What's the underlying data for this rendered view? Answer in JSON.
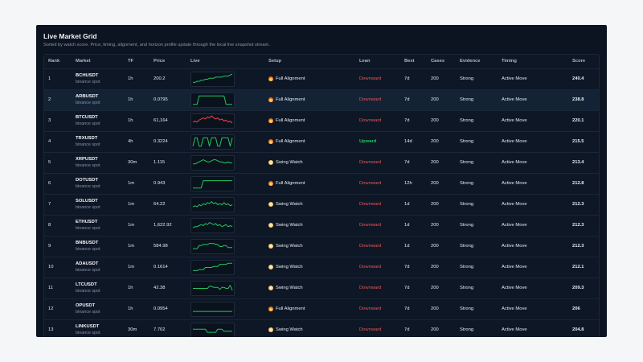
{
  "title": "Live Market Grid",
  "subtitle": "Sorted by watch score. Price, timing, alignment, and horizon profile update through the local live snapshot stream.",
  "columns": {
    "rank": "Rank",
    "market": "Market",
    "tf": "TF",
    "price": "Price",
    "live": "Live",
    "setup": "Setup",
    "lean": "Lean",
    "best": "Best",
    "cases": "Cases",
    "evidence": "Evidence",
    "timing": "Timing",
    "score": "Score"
  },
  "colors": {
    "up": "#22c55e",
    "down": "#ef5350",
    "spark_green": "#22c55e",
    "spark_red": "#ef4444"
  },
  "rows": [
    {
      "rank": "1",
      "market": "BCHUSDT",
      "exchange": "binance spot",
      "tf": "1h",
      "price": "200.2",
      "setup": "Full Alignment",
      "setup_icon": "fire-icon",
      "lean": "Downward",
      "best": "7d",
      "cases": "200",
      "evidence": "Strong",
      "timing": "Active Move",
      "score": "240.4",
      "spark_color": "green",
      "spark": [
        2,
        2,
        3,
        3,
        4,
        4,
        5,
        5,
        6,
        6,
        6,
        7,
        7,
        7,
        7,
        8,
        8,
        8,
        9,
        10
      ]
    },
    {
      "rank": "2",
      "market": "ARBUSDT",
      "exchange": "binance spot",
      "tf": "1h",
      "price": "0.0795",
      "setup": "Full Alignment",
      "setup_icon": "fire-icon",
      "lean": "Downward",
      "best": "7d",
      "cases": "200",
      "evidence": "Strong",
      "timing": "Active Move",
      "score": "238.8",
      "spark_color": "green",
      "spark": [
        1,
        1,
        1,
        9,
        9,
        9,
        9,
        9,
        9,
        9,
        9,
        9,
        9,
        9,
        9,
        9,
        1,
        1,
        1,
        1
      ]
    },
    {
      "rank": "3",
      "market": "BTCUSDT",
      "exchange": "binance spot",
      "tf": "1h",
      "price": "61,164",
      "setup": "Full Alignment",
      "setup_icon": "fire-icon",
      "lean": "Downward",
      "best": "7d",
      "cases": "200",
      "evidence": "Strong",
      "timing": "Active Move",
      "score": "220.1",
      "spark_color": "red",
      "spark": [
        4,
        5,
        4,
        6,
        7,
        8,
        7,
        9,
        8,
        10,
        8,
        7,
        8,
        6,
        7,
        5,
        6,
        4,
        5,
        3
      ]
    },
    {
      "rank": "4",
      "market": "TRXUSDT",
      "exchange": "binance spot",
      "tf": "4h",
      "price": "0.3224",
      "setup": "Full Alignment",
      "setup_icon": "fire-icon",
      "lean": "Upward",
      "best": "14d",
      "cases": "200",
      "evidence": "Strong",
      "timing": "Active Move",
      "score": "215.5",
      "spark_color": "green",
      "spark": [
        1,
        9,
        9,
        1,
        1,
        9,
        9,
        9,
        1,
        9,
        9,
        9,
        1,
        1,
        9,
        9,
        9,
        9,
        1,
        9
      ]
    },
    {
      "rank": "5",
      "market": "XRPUSDT",
      "exchange": "binance spot",
      "tf": "30m",
      "price": "1.115",
      "setup": "Swing Watch",
      "setup_icon": "swing-icon",
      "lean": "Downward",
      "best": "7d",
      "cases": "200",
      "evidence": "Strong",
      "timing": "Active Move",
      "score": "213.4",
      "spark_color": "green",
      "spark": [
        4,
        4,
        5,
        6,
        7,
        8,
        7,
        6,
        6,
        7,
        8,
        8,
        7,
        6,
        6,
        5,
        5,
        6,
        5,
        5
      ]
    },
    {
      "rank": "6",
      "market": "DOTUSDT",
      "exchange": "binance spot",
      "tf": "1m",
      "price": "0.943",
      "setup": "Full Alignment",
      "setup_icon": "fire-icon",
      "lean": "Downward",
      "best": "12h",
      "cases": "200",
      "evidence": "Strong",
      "timing": "Active Move",
      "score": "212.8",
      "spark_color": "green",
      "spark": [
        1,
        1,
        1,
        1,
        1,
        8,
        8,
        8,
        8,
        8,
        8,
        8,
        8,
        8,
        8,
        8,
        8,
        8,
        8,
        8
      ]
    },
    {
      "rank": "7",
      "market": "SOLUSDT",
      "exchange": "binance spot",
      "tf": "1m",
      "price": "64.22",
      "setup": "Swing Watch",
      "setup_icon": "swing-icon",
      "lean": "Downward",
      "best": "1d",
      "cases": "200",
      "evidence": "Strong",
      "timing": "Active Move",
      "score": "212.3",
      "spark_color": "green",
      "spark": [
        3,
        4,
        3,
        5,
        4,
        6,
        5,
        7,
        6,
        8,
        6,
        7,
        5,
        6,
        5,
        7,
        5,
        6,
        4,
        5
      ]
    },
    {
      "rank": "8",
      "market": "ETHUSDT",
      "exchange": "binance spot",
      "tf": "1m",
      "price": "1,622.92",
      "setup": "Swing Watch",
      "setup_icon": "swing-icon",
      "lean": "Downward",
      "best": "1d",
      "cases": "200",
      "evidence": "Strong",
      "timing": "Active Move",
      "score": "212.3",
      "spark_color": "green",
      "spark": [
        3,
        4,
        4,
        5,
        6,
        5,
        7,
        6,
        8,
        7,
        6,
        7,
        5,
        6,
        4,
        5,
        6,
        4,
        5,
        4
      ]
    },
    {
      "rank": "9",
      "market": "BNBUSDT",
      "exchange": "binance spot",
      "tf": "1m",
      "price": "584.98",
      "setup": "Swing Watch",
      "setup_icon": "swing-icon",
      "lean": "Downward",
      "best": "1d",
      "cases": "200",
      "evidence": "Strong",
      "timing": "Active Move",
      "score": "212.3",
      "spark_color": "green",
      "spark": [
        3,
        3,
        3,
        6,
        6,
        7,
        7,
        7,
        8,
        8,
        8,
        7,
        7,
        5,
        5,
        6,
        6,
        4,
        4,
        4
      ]
    },
    {
      "rank": "10",
      "market": "ADAUSDT",
      "exchange": "binance spot",
      "tf": "1m",
      "price": "0.1614",
      "setup": "Swing Watch",
      "setup_icon": "swing-icon",
      "lean": "Downward",
      "best": "7d",
      "cases": "200",
      "evidence": "Strong",
      "timing": "Active Move",
      "score": "212.1",
      "spark_color": "green",
      "spark": [
        2,
        2,
        2,
        3,
        3,
        3,
        5,
        5,
        5,
        5,
        6,
        6,
        6,
        8,
        8,
        8,
        8,
        9,
        9,
        9
      ]
    },
    {
      "rank": "11",
      "market": "LTCUSDT",
      "exchange": "binance spot",
      "tf": "1h",
      "price": "42.38",
      "setup": "Swing Watch",
      "setup_icon": "swing-icon",
      "lean": "Downward",
      "best": "7d",
      "cases": "200",
      "evidence": "Strong",
      "timing": "Active Move",
      "score": "209.3",
      "spark_color": "green",
      "spark": [
        5,
        5,
        5,
        5,
        5,
        5,
        5,
        5,
        7,
        7,
        6,
        6,
        6,
        4,
        6,
        6,
        5,
        5,
        8,
        3
      ]
    },
    {
      "rank": "12",
      "market": "OPUSDT",
      "exchange": "binance spot",
      "tf": "1h",
      "price": "0.0954",
      "setup": "Full Alignment",
      "setup_icon": "fire-icon",
      "lean": "Downward",
      "best": "7d",
      "cases": "200",
      "evidence": "Strong",
      "timing": "Active Move",
      "score": "206",
      "spark_color": "green",
      "spark": [
        3,
        3,
        3,
        3,
        3,
        3,
        3,
        3,
        3,
        3,
        3,
        3,
        3,
        3,
        3,
        3,
        3,
        3,
        3,
        3
      ]
    },
    {
      "rank": "13",
      "market": "LINKUSDT",
      "exchange": "binance spot",
      "tf": "30m",
      "price": "7.702",
      "setup": "Swing Watch",
      "setup_icon": "swing-icon",
      "lean": "Downward",
      "best": "7d",
      "cases": "200",
      "evidence": "Strong",
      "timing": "Active Move",
      "score": "204.8",
      "spark_color": "green",
      "spark": [
        6,
        6,
        6,
        6,
        6,
        6,
        6,
        3,
        3,
        3,
        3,
        3,
        6,
        6,
        6,
        4,
        4,
        4,
        4,
        4
      ]
    }
  ]
}
